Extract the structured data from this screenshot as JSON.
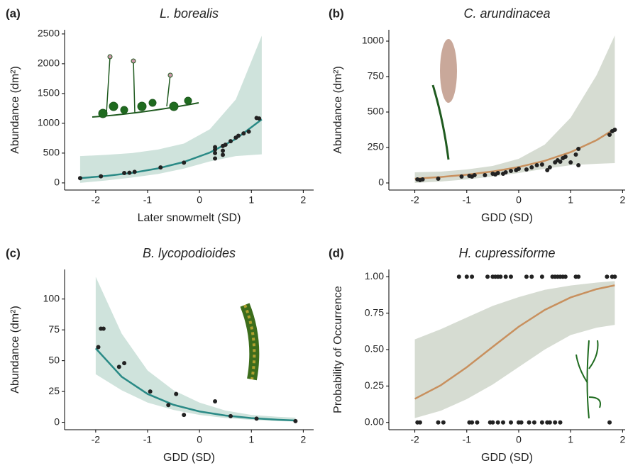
{
  "chart_data": [
    {
      "type": "scatter",
      "panel": "(a)",
      "title": "L. borealis",
      "x_label": "Later snowmelt (SD)",
      "y_label": "Abundance (dm²)",
      "xlim": [
        -2.6,
        2.2
      ],
      "ylim": [
        -120,
        2570
      ],
      "xticks": [
        -2,
        -1,
        0,
        1,
        2
      ],
      "yticks": [
        0,
        500,
        1000,
        1500,
        2000,
        2500
      ],
      "point_color": "#222222",
      "points": {
        "x": [
          -2.3,
          -1.9,
          -1.45,
          -1.35,
          -1.25,
          -0.75,
          -0.3,
          0.3,
          0.3,
          0.3,
          0.3,
          0.45,
          0.45,
          0.45,
          0.5,
          0.6,
          0.7,
          0.75,
          0.85,
          0.95,
          1.1,
          1.15
        ],
        "y": [
          80,
          110,
          165,
          170,
          185,
          260,
          340,
          410,
          500,
          560,
          600,
          470,
          540,
          620,
          640,
          700,
          760,
          790,
          830,
          860,
          1090,
          1080
        ]
      },
      "fit": {
        "color": "#2a8a86",
        "band_color": "#cfe3dc",
        "x": [
          -2.3,
          -1.8,
          -1.3,
          -0.8,
          -0.3,
          0.2,
          0.7,
          1.2
        ],
        "values": [
          80,
          116,
          168,
          243,
          351,
          509,
          737,
          1066
        ],
        "lower": [
          0,
          40,
          90,
          150,
          240,
          360,
          450,
          480
        ],
        "upper": [
          450,
          470,
          500,
          560,
          660,
          900,
          1400,
          2470
        ]
      }
    },
    {
      "type": "scatter",
      "panel": "(b)",
      "title": "C. arundinacea",
      "x_label": "GDD (SD)",
      "y_label": "Abundance (dm²)",
      "xlim": [
        -2.5,
        2.05
      ],
      "ylim": [
        -50,
        1080
      ],
      "xticks": [
        -2,
        -1,
        0,
        1,
        2
      ],
      "yticks": [
        0,
        250,
        500,
        750,
        1000
      ],
      "point_color": "#222222",
      "points": {
        "x": [
          -1.95,
          -1.9,
          -1.85,
          -1.55,
          -1.1,
          -0.95,
          -0.9,
          -0.85,
          -0.65,
          -0.5,
          -0.45,
          -0.4,
          -0.3,
          -0.25,
          -0.15,
          -0.05,
          0,
          0.15,
          0.25,
          0.35,
          0.45,
          0.55,
          0.6,
          0.7,
          0.75,
          0.8,
          0.85,
          0.9,
          1.0,
          1.1,
          1.15,
          1.15,
          1.75,
          1.8,
          1.85
        ],
        "y": [
          25,
          20,
          25,
          30,
          45,
          50,
          45,
          55,
          55,
          65,
          60,
          70,
          65,
          75,
          85,
          90,
          100,
          95,
          110,
          125,
          130,
          90,
          110,
          145,
          160,
          150,
          175,
          185,
          145,
          200,
          240,
          125,
          340,
          365,
          375
        ]
      },
      "fit": {
        "color": "#c8905e",
        "band_color": "#d6dcd2",
        "x": [
          -2,
          -1.5,
          -1,
          -0.5,
          0,
          0.5,
          1,
          1.5,
          1.85
        ],
        "values": [
          30,
          42,
          58,
          81,
          112,
          156,
          217,
          302,
          381
        ],
        "lower": [
          0,
          10,
          25,
          45,
          70,
          100,
          125,
          135,
          140
        ],
        "upper": [
          75,
          80,
          95,
          120,
          170,
          270,
          460,
          760,
          1040
        ]
      }
    },
    {
      "type": "scatter",
      "panel": "(c)",
      "title": "B. lycopodioides",
      "x_label": "GDD (SD)",
      "y_label": "Abundance (dm²)",
      "xlim": [
        -2.6,
        2.2
      ],
      "ylim": [
        -6,
        124
      ],
      "xticks": [
        -2,
        -1,
        0,
        1,
        2
      ],
      "yticks": [
        0,
        25,
        50,
        75,
        100
      ],
      "point_color": "#222222",
      "points": {
        "x": [
          -1.95,
          -1.9,
          -1.85,
          -1.55,
          -1.45,
          -0.95,
          -0.6,
          -0.45,
          -0.3,
          0.3,
          0.6,
          1.1,
          1.85
        ],
        "y": [
          61,
          76,
          76,
          45,
          48,
          25,
          14,
          23,
          6,
          17,
          5,
          3,
          1
        ]
      },
      "fit": {
        "color": "#2a8a86",
        "band_color": "#cfe3dc",
        "x": [
          -2,
          -1.5,
          -1,
          -0.5,
          0,
          0.5,
          1,
          1.5,
          1.85
        ],
        "values": [
          60,
          37,
          23,
          14.2,
          8.8,
          5.5,
          3.4,
          2.1,
          1.5
        ],
        "lower": [
          39,
          26,
          16,
          10,
          6,
          3.5,
          2,
          1,
          0.6
        ],
        "upper": [
          118,
          72,
          42,
          26,
          16,
          9.5,
          6,
          4.5,
          3.8
        ]
      }
    },
    {
      "type": "scatter",
      "panel": "(d)",
      "title": "H. cupressiforme",
      "x_label": "GDD (SD)",
      "y_label": "Probability of Occurrence",
      "xlim": [
        -2.5,
        2.05
      ],
      "ylim": [
        -0.05,
        1.05
      ],
      "xticks": [
        -2,
        -1,
        0,
        1,
        2
      ],
      "yticks": [
        {
          "value": 0,
          "label": "0.00"
        },
        {
          "value": 0.25,
          "label": "0.25"
        },
        {
          "value": 0.5,
          "label": "0.50"
        },
        {
          "value": 0.75,
          "label": "0.75"
        },
        {
          "value": 1,
          "label": "1.00"
        }
      ],
      "point_color": "#222222",
      "points": {
        "x": [
          -1.15,
          -1.0,
          -0.9,
          -0.6,
          -0.5,
          -0.45,
          -0.4,
          -0.35,
          -0.25,
          -0.15,
          0.15,
          0.25,
          0.45,
          0.65,
          0.7,
          0.75,
          0.8,
          0.85,
          0.9,
          1.1,
          1.15,
          1.7,
          1.8,
          1.85,
          -1.95,
          -1.9,
          -1.55,
          -1.45,
          -0.95,
          -0.9,
          -0.8,
          -0.55,
          -0.5,
          -0.4,
          -0.3,
          -0.15,
          0,
          0.05,
          0.2,
          0.3,
          0.45,
          0.55,
          0.6,
          0.7,
          0.8,
          1.75
        ],
        "y": [
          1,
          1,
          1,
          1,
          1,
          1,
          1,
          1,
          1,
          1,
          1,
          1,
          1,
          1,
          1,
          1,
          1,
          1,
          1,
          1,
          1,
          1,
          1,
          1,
          0,
          0,
          0,
          0,
          0,
          0,
          0,
          0,
          0,
          0,
          0,
          0,
          0,
          0,
          0,
          0,
          0,
          0,
          0,
          0,
          0,
          0
        ]
      },
      "fit": {
        "color": "#c8905e",
        "band_color": "#d6dcd2",
        "x": [
          -2,
          -1.5,
          -1,
          -0.5,
          0,
          0.5,
          1,
          1.5,
          1.85
        ],
        "values": [
          0.162,
          0.255,
          0.379,
          0.519,
          0.657,
          0.772,
          0.858,
          0.915,
          0.941
        ],
        "lower": [
          0.03,
          0.08,
          0.16,
          0.26,
          0.38,
          0.5,
          0.6,
          0.65,
          0.67
        ],
        "upper": [
          0.57,
          0.64,
          0.72,
          0.8,
          0.86,
          0.91,
          0.94,
          0.96,
          0.97
        ]
      }
    }
  ]
}
